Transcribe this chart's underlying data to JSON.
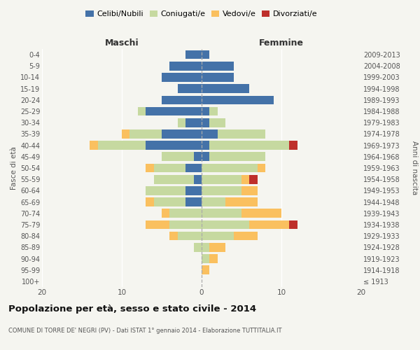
{
  "age_groups": [
    "100+",
    "95-99",
    "90-94",
    "85-89",
    "80-84",
    "75-79",
    "70-74",
    "65-69",
    "60-64",
    "55-59",
    "50-54",
    "45-49",
    "40-44",
    "35-39",
    "30-34",
    "25-29",
    "20-24",
    "15-19",
    "10-14",
    "5-9",
    "0-4"
  ],
  "birth_years": [
    "≤ 1913",
    "1914-1918",
    "1919-1923",
    "1924-1928",
    "1929-1933",
    "1934-1938",
    "1939-1943",
    "1944-1948",
    "1949-1953",
    "1954-1958",
    "1959-1963",
    "1964-1968",
    "1969-1973",
    "1974-1978",
    "1979-1983",
    "1984-1988",
    "1989-1993",
    "1994-1998",
    "1999-2003",
    "2004-2008",
    "2009-2013"
  ],
  "males": {
    "celibi": [
      0,
      0,
      0,
      0,
      0,
      0,
      0,
      2,
      2,
      1,
      2,
      1,
      7,
      5,
      2,
      7,
      5,
      3,
      5,
      4,
      2
    ],
    "coniugati": [
      0,
      0,
      0,
      1,
      3,
      4,
      4,
      4,
      5,
      5,
      4,
      4,
      6,
      4,
      1,
      1,
      0,
      0,
      0,
      0,
      0
    ],
    "vedovi": [
      0,
      0,
      0,
      0,
      1,
      3,
      1,
      1,
      0,
      0,
      1,
      0,
      1,
      1,
      0,
      0,
      0,
      0,
      0,
      0,
      0
    ],
    "divorziati": [
      0,
      0,
      0,
      0,
      0,
      0,
      0,
      0,
      0,
      0,
      0,
      0,
      0,
      0,
      0,
      0,
      0,
      0,
      0,
      0,
      0
    ]
  },
  "females": {
    "nubili": [
      0,
      0,
      0,
      0,
      0,
      0,
      0,
      0,
      0,
      0,
      0,
      1,
      1,
      2,
      1,
      1,
      9,
      6,
      4,
      4,
      1
    ],
    "coniugate": [
      0,
      0,
      1,
      1,
      4,
      6,
      5,
      3,
      5,
      5,
      7,
      7,
      10,
      6,
      2,
      1,
      0,
      0,
      0,
      0,
      0
    ],
    "vedove": [
      0,
      1,
      1,
      2,
      3,
      5,
      5,
      4,
      2,
      1,
      1,
      0,
      0,
      0,
      0,
      0,
      0,
      0,
      0,
      0,
      0
    ],
    "divorziate": [
      0,
      0,
      0,
      0,
      0,
      1,
      0,
      0,
      0,
      1,
      0,
      0,
      1,
      0,
      0,
      0,
      0,
      0,
      0,
      0,
      0
    ]
  },
  "colors": {
    "celibi": "#4472a8",
    "coniugati": "#c6d9a0",
    "vedovi": "#fac05f",
    "divorziati": "#be2f2b"
  },
  "xlim": 20,
  "xlabel_left": "Maschi",
  "xlabel_right": "Femmine",
  "ylabel_left": "Fasce di età",
  "ylabel_right": "Anni di nascita",
  "title": "Popolazione per età, sesso e stato civile - 2014",
  "subtitle": "COMUNE DI TORRE DE' NEGRI (PV) - Dati ISTAT 1° gennaio 2014 - Elaborazione TUTTITALIA.IT",
  "legend_labels": [
    "Celibi/Nubili",
    "Coniugati/e",
    "Vedovi/e",
    "Divorziati/e"
  ],
  "bg_color": "#f5f5f0",
  "grid_color": "#ffffff"
}
